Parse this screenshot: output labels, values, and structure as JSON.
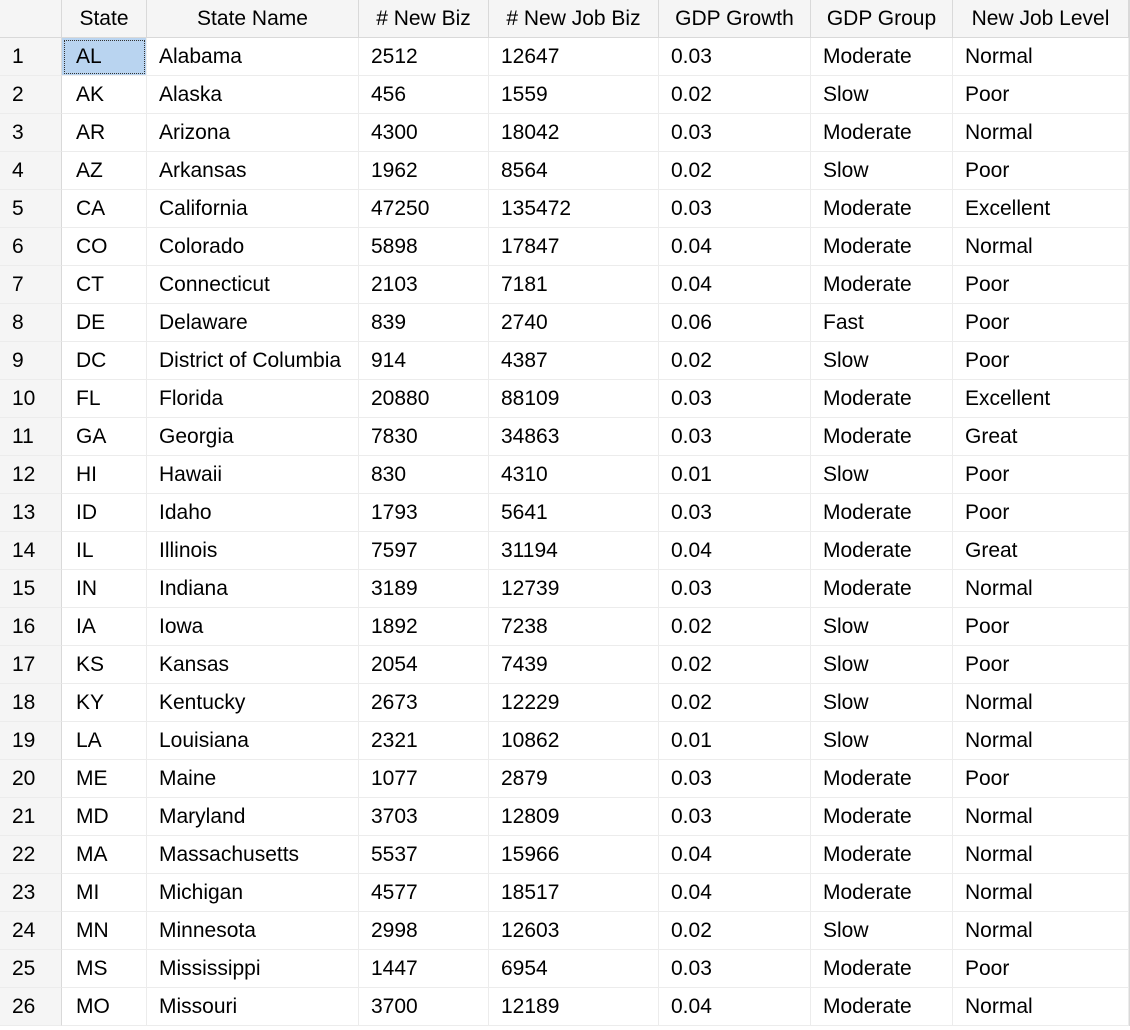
{
  "columns": [
    "",
    "State",
    "State Name",
    "# New Biz",
    "# New Job Biz",
    "GDP Growth",
    "GDP Group",
    "New Job Level"
  ],
  "rows": [
    [
      "1",
      "AL",
      "Alabama",
      "2512",
      "12647",
      "0.03",
      "Moderate",
      "Normal"
    ],
    [
      "2",
      "AK",
      "Alaska",
      "456",
      "1559",
      "0.02",
      "Slow",
      "Poor"
    ],
    [
      "3",
      "AR",
      "Arizona",
      "4300",
      "18042",
      "0.03",
      "Moderate",
      "Normal"
    ],
    [
      "4",
      "AZ",
      "Arkansas",
      "1962",
      "8564",
      "0.02",
      "Slow",
      "Poor"
    ],
    [
      "5",
      "CA",
      "California",
      "47250",
      "135472",
      "0.03",
      "Moderate",
      "Excellent"
    ],
    [
      "6",
      "CO",
      "Colorado",
      "5898",
      "17847",
      "0.04",
      "Moderate",
      "Normal"
    ],
    [
      "7",
      "CT",
      "Connecticut",
      "2103",
      "7181",
      "0.04",
      "Moderate",
      "Poor"
    ],
    [
      "8",
      "DE",
      "Delaware",
      "839",
      "2740",
      "0.06",
      "Fast",
      "Poor"
    ],
    [
      "9",
      "DC",
      "District of Columbia",
      "914",
      "4387",
      "0.02",
      "Slow",
      "Poor"
    ],
    [
      "10",
      "FL",
      "Florida",
      "20880",
      "88109",
      "0.03",
      "Moderate",
      "Excellent"
    ],
    [
      "11",
      "GA",
      "Georgia",
      "7830",
      "34863",
      "0.03",
      "Moderate",
      "Great"
    ],
    [
      "12",
      "HI",
      "Hawaii",
      "830",
      "4310",
      "0.01",
      "Slow",
      "Poor"
    ],
    [
      "13",
      "ID",
      "Idaho",
      "1793",
      "5641",
      "0.03",
      "Moderate",
      "Poor"
    ],
    [
      "14",
      "IL",
      "Illinois",
      "7597",
      "31194",
      "0.04",
      "Moderate",
      "Great"
    ],
    [
      "15",
      "IN",
      "Indiana",
      "3189",
      "12739",
      "0.03",
      "Moderate",
      "Normal"
    ],
    [
      "16",
      "IA",
      "Iowa",
      "1892",
      "7238",
      "0.02",
      "Slow",
      "Poor"
    ],
    [
      "17",
      "KS",
      "Kansas",
      "2054",
      "7439",
      "0.02",
      "Slow",
      "Poor"
    ],
    [
      "18",
      "KY",
      "Kentucky",
      "2673",
      "12229",
      "0.02",
      "Slow",
      "Normal"
    ],
    [
      "19",
      "LA",
      "Louisiana",
      "2321",
      "10862",
      "0.01",
      "Slow",
      "Normal"
    ],
    [
      "20",
      "ME",
      "Maine",
      "1077",
      "2879",
      "0.03",
      "Moderate",
      "Poor"
    ],
    [
      "21",
      "MD",
      "Maryland",
      "3703",
      "12809",
      "0.03",
      "Moderate",
      "Normal"
    ],
    [
      "22",
      "MA",
      "Massachusetts",
      "5537",
      "15966",
      "0.04",
      "Moderate",
      "Normal"
    ],
    [
      "23",
      "MI",
      "Michigan",
      "4577",
      "18517",
      "0.04",
      "Moderate",
      "Normal"
    ],
    [
      "24",
      "MN",
      "Minnesota",
      "2998",
      "12603",
      "0.02",
      "Slow",
      "Normal"
    ],
    [
      "25",
      "MS",
      "Mississippi",
      "1447",
      "6954",
      "0.03",
      "Moderate",
      "Poor"
    ],
    [
      "26",
      "MO",
      "Missouri",
      "3700",
      "12189",
      "0.04",
      "Moderate",
      "Normal"
    ]
  ],
  "selected": {
    "row": 0,
    "col": 1
  }
}
